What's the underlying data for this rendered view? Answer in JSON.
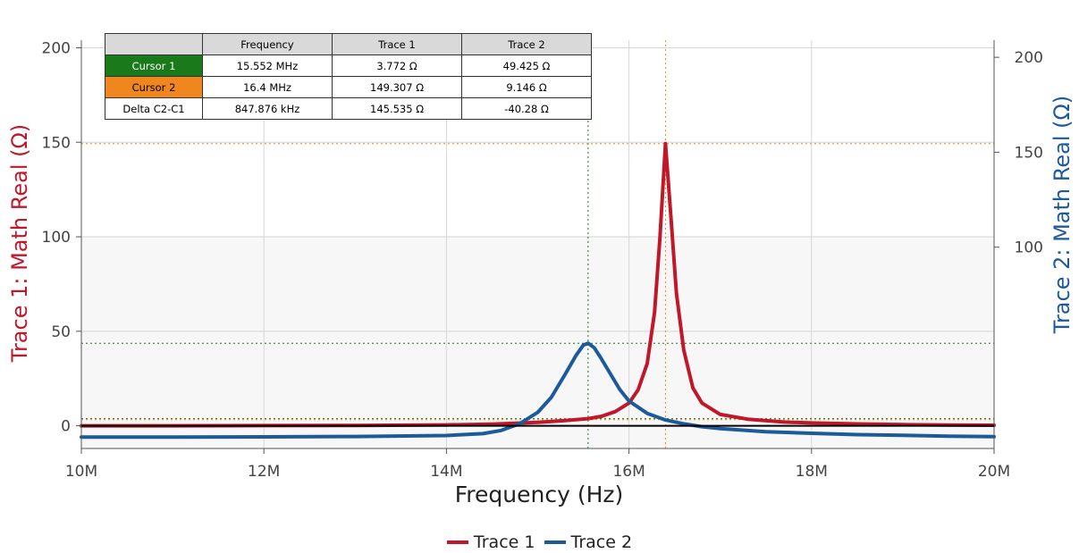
{
  "chart_data": {
    "type": "line",
    "xlabel": "Frequency (Hz)",
    "ylabel_left": "Trace 1: Math Real (Ω)",
    "ylabel_right": "Trace 2: Math Real (Ω)",
    "xlim": [
      10000000,
      20000000
    ],
    "ylim_left": [
      -12,
      204
    ],
    "ylim_right": [
      -6,
      209
    ],
    "x_ticks": [
      {
        "value": 10000000,
        "label": "10M"
      },
      {
        "value": 12000000,
        "label": "12M"
      },
      {
        "value": 14000000,
        "label": "14M"
      },
      {
        "value": 16000000,
        "label": "16M"
      },
      {
        "value": 18000000,
        "label": "18M"
      },
      {
        "value": 20000000,
        "label": "20M"
      }
    ],
    "y_ticks_left": [
      {
        "value": 0,
        "label": "0"
      },
      {
        "value": 50,
        "label": "50"
      },
      {
        "value": 100,
        "label": "100"
      },
      {
        "value": 150,
        "label": "150"
      },
      {
        "value": 200,
        "label": "200"
      }
    ],
    "y_ticks_right": [
      {
        "value": 100,
        "label": "100"
      },
      {
        "value": 150,
        "label": "150"
      },
      {
        "value": 200,
        "label": "200"
      }
    ],
    "grid": true,
    "legend_position": "bottom-center",
    "series": [
      {
        "name": "Trace 1",
        "axis": "left",
        "color": "#c0182a",
        "x": [
          10000000,
          11000000,
          12000000,
          13000000,
          14000000,
          14500000,
          15000000,
          15300000,
          15552000,
          15700000,
          15850000,
          16000000,
          16100000,
          16200000,
          16280000,
          16340000,
          16400000,
          16460000,
          16520000,
          16600000,
          16700000,
          16800000,
          17000000,
          17300000,
          17700000,
          18000000,
          18500000,
          19000000,
          19500000,
          20000000
        ],
        "y": [
          0,
          0,
          0.1,
          0.2,
          0.5,
          0.9,
          1.8,
          2.8,
          3.8,
          5,
          7.5,
          12,
          19,
          33,
          60,
          100,
          149.3,
          110,
          70,
          40,
          20,
          12,
          6,
          3.5,
          2,
          1.5,
          1,
          0.6,
          0.4,
          0.3
        ]
      },
      {
        "name": "Trace 2",
        "axis": "right",
        "color": "#1c5a99",
        "x": [
          10000000,
          11000000,
          12000000,
          13000000,
          14000000,
          14400000,
          14600000,
          14800000,
          15000000,
          15150000,
          15300000,
          15420000,
          15500000,
          15552000,
          15620000,
          15700000,
          15800000,
          15900000,
          16000000,
          16200000,
          16400000,
          16600000,
          16800000,
          17000000,
          17500000,
          18000000,
          18500000,
          19000000,
          19500000,
          20000000
        ],
        "y": [
          0,
          0,
          0.1,
          0.3,
          0.8,
          1.8,
          3.5,
          7,
          13,
          21,
          33,
          43,
          48.5,
          49.4,
          47,
          41,
          33,
          25,
          19,
          12.5,
          9,
          7,
          5.5,
          4.5,
          2.8,
          2,
          1.3,
          0.9,
          0.5,
          0.2
        ]
      }
    ],
    "cursors": [
      {
        "name": "Cursor 1",
        "color": "#1a7a1a",
        "x": 15552000,
        "y_left": 3.772,
        "y_right": 49.425
      },
      {
        "name": "Cursor 2",
        "color": "#f0861e",
        "x": 16400000,
        "y_left": 149.307,
        "y_right": 9.146
      }
    ]
  },
  "cursor_table": {
    "headers": [
      "",
      "Frequency",
      "Trace 1",
      "Trace 2"
    ],
    "rows": [
      {
        "label": "Cursor 1",
        "color": "#1a7a1a",
        "text_color": "#ffffff",
        "frequency": "15.552 MHz",
        "trace1": "3.772 Ω",
        "trace2": "49.425 Ω"
      },
      {
        "label": "Cursor 2",
        "color": "#f0861e",
        "text_color": "#000000",
        "frequency": "16.4 MHz",
        "trace1": "149.307 Ω",
        "trace2": "9.146 Ω"
      },
      {
        "label": "Delta C2-C1",
        "color": "#ffffff",
        "text_color": "#000000",
        "frequency": "847.876 kHz",
        "trace1": "145.535 Ω",
        "trace2": "-40.28 Ω"
      }
    ]
  },
  "legend": [
    {
      "label": "Trace 1",
      "color": "#c0182a"
    },
    {
      "label": "Trace 2",
      "color": "#1c5a99"
    }
  ]
}
